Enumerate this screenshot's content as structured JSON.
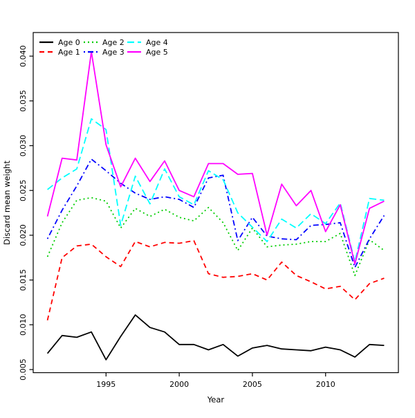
{
  "chart_data": {
    "type": "line",
    "title": "",
    "xlabel": "Year",
    "ylabel": "Discard mean weight",
    "grid": false,
    "legend_position": "top-left",
    "xlim": [
      1990.0,
      2015.0
    ],
    "ylim": [
      0.00465,
      0.04264
    ],
    "x_ticks": [
      1995,
      2000,
      2005,
      2010
    ],
    "x_tick_labels": [
      "1995",
      "2000",
      "2005",
      "2010"
    ],
    "y_ticks": [
      0.005,
      0.01,
      0.015,
      0.02,
      0.025,
      0.03,
      0.035,
      0.04
    ],
    "y_tick_labels": [
      "0.005",
      "0.010",
      "0.015",
      "0.020",
      "0.025",
      "0.030",
      "0.035",
      "0.040"
    ],
    "x": [
      1991,
      1992,
      1993,
      1994,
      1995,
      1996,
      1997,
      1998,
      1999,
      2000,
      2001,
      2002,
      2003,
      2004,
      2005,
      2006,
      2007,
      2008,
      2009,
      2010,
      2011,
      2012,
      2013,
      2014
    ],
    "series": [
      {
        "name": "Age 0",
        "color": "#000000",
        "linetype": "solid",
        "values": [
          0.0068,
          0.0088,
          0.0086,
          0.0092,
          0.0061,
          0.0087,
          0.0111,
          0.0097,
          0.0092,
          0.0078,
          0.0078,
          0.0072,
          0.0078,
          0.0065,
          0.0074,
          0.0077,
          0.0073,
          0.0072,
          0.0071,
          0.0075,
          0.0072,
          0.0064,
          0.0078,
          0.0077
        ]
      },
      {
        "name": "Age 1",
        "color": "#ff0000",
        "linetype": "dashed",
        "values": [
          0.0105,
          0.0175,
          0.0188,
          0.019,
          0.0176,
          0.0165,
          0.0193,
          0.0187,
          0.0192,
          0.0191,
          0.0194,
          0.0157,
          0.0153,
          0.0154,
          0.0157,
          0.015,
          0.017,
          0.0155,
          0.0148,
          0.014,
          0.0143,
          0.0128,
          0.0146,
          0.0152
        ]
      },
      {
        "name": "Age 2",
        "color": "#00cd00",
        "linetype": "dotted",
        "values": [
          0.0176,
          0.0214,
          0.0239,
          0.0242,
          0.0238,
          0.0208,
          0.023,
          0.0221,
          0.0229,
          0.022,
          0.0216,
          0.0231,
          0.0214,
          0.0183,
          0.0208,
          0.0187,
          0.0189,
          0.019,
          0.0193,
          0.0193,
          0.0202,
          0.0155,
          0.0195,
          0.0183
        ]
      },
      {
        "name": "Age 3",
        "color": "#0000ff",
        "linetype": "dotdash",
        "values": [
          0.0196,
          0.0228,
          0.0255,
          0.0285,
          0.0272,
          0.0258,
          0.0247,
          0.024,
          0.0243,
          0.024,
          0.0231,
          0.0264,
          0.0267,
          0.0194,
          0.022,
          0.0199,
          0.0196,
          0.0195,
          0.0211,
          0.0212,
          0.0214,
          0.0164,
          0.0196,
          0.0222
        ]
      },
      {
        "name": "Age 4",
        "color": "#00ffff",
        "linetype": "longdash",
        "values": [
          0.0251,
          0.0264,
          0.0274,
          0.033,
          0.0318,
          0.0211,
          0.0266,
          0.0235,
          0.0274,
          0.0243,
          0.0234,
          0.0272,
          0.0262,
          0.0225,
          0.0209,
          0.0193,
          0.0218,
          0.0208,
          0.0224,
          0.0213,
          0.0236,
          0.017,
          0.0241,
          0.0239
        ]
      },
      {
        "name": "Age 5",
        "color": "#ff00ff",
        "linetype": "solid",
        "values": [
          0.0221,
          0.0286,
          0.0284,
          0.0405,
          0.0301,
          0.0254,
          0.0286,
          0.026,
          0.0283,
          0.025,
          0.0243,
          0.028,
          0.028,
          0.0268,
          0.0269,
          0.02,
          0.0257,
          0.0233,
          0.025,
          0.0204,
          0.0234,
          0.0168,
          0.023,
          0.0238
        ]
      }
    ]
  }
}
